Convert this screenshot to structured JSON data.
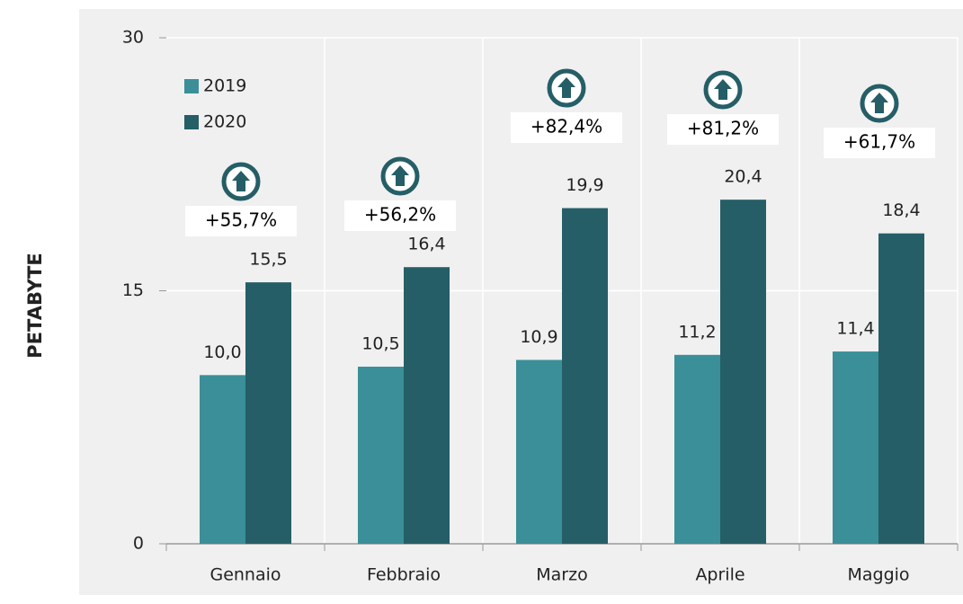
{
  "chart_data": {
    "type": "bar",
    "y_label": "PETABYTE",
    "categories": [
      "Gennaio",
      "Febbraio",
      "Marzo",
      "Aprile",
      "Maggio"
    ],
    "series": [
      {
        "name": "2019",
        "color": "#3a8f98",
        "values": [
          10.0,
          10.5,
          10.9,
          11.2,
          11.4
        ],
        "value_labels": [
          "10,0",
          "10,5",
          "10,9",
          "11,2",
          "11,4"
        ]
      },
      {
        "name": "2020",
        "color": "#255e66",
        "values": [
          15.5,
          16.4,
          19.9,
          20.4,
          18.4
        ],
        "value_labels": [
          "15,5",
          "16,4",
          "19,9",
          "20,4",
          "18,4"
        ]
      }
    ],
    "annotations": [
      "+55,7%",
      "+56,2%",
      "+82,4%",
      "+81,2%",
      "+61,7%"
    ],
    "ylim": [
      0,
      30
    ],
    "yticks": [
      0,
      15,
      30
    ],
    "grid": true,
    "legend": "top-left"
  }
}
